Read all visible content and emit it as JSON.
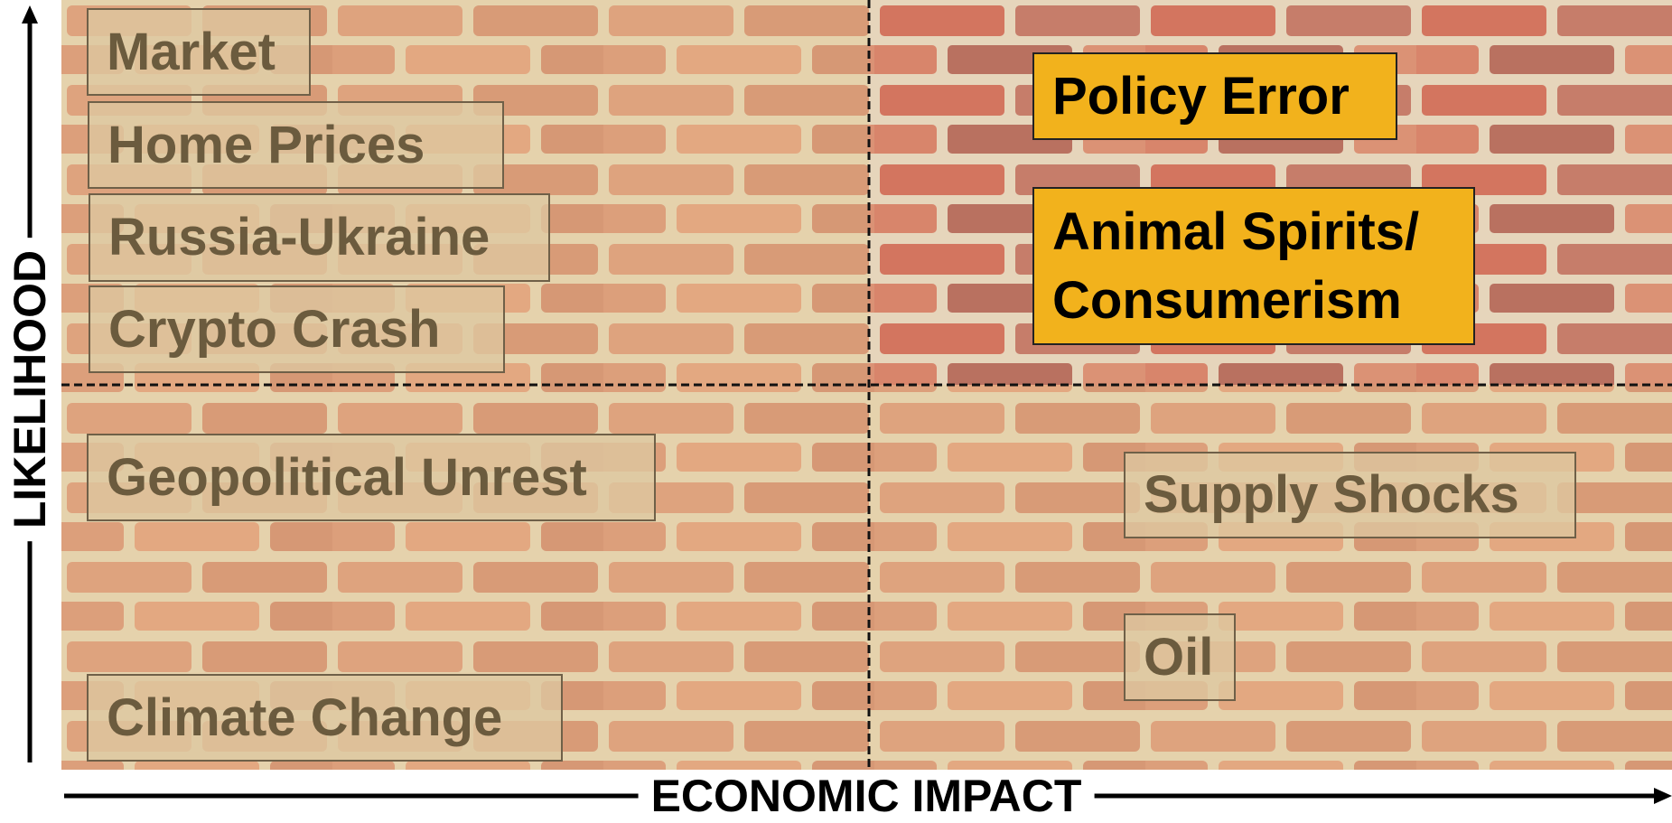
{
  "axes": {
    "x_label": "ECONOMIC IMPACT",
    "y_label": "LIKELIHOOD"
  },
  "risks": [
    {
      "lines": [
        "Market"
      ],
      "highlighted": false
    },
    {
      "lines": [
        "Home Prices"
      ],
      "highlighted": false
    },
    {
      "lines": [
        "Russia-Ukraine"
      ],
      "highlighted": false
    },
    {
      "lines": [
        "Crypto Crash"
      ],
      "highlighted": false
    },
    {
      "lines": [
        "Geopolitical Unrest"
      ],
      "highlighted": false
    },
    {
      "lines": [
        "Climate Change"
      ],
      "highlighted": false
    },
    {
      "lines": [
        "Policy Error"
      ],
      "highlighted": true
    },
    {
      "lines": [
        "Animal Spirits/",
        "Consumerism"
      ],
      "highlighted": true
    },
    {
      "lines": [
        "Supply Shocks"
      ],
      "highlighted": false
    },
    {
      "lines": [
        "Oil"
      ],
      "highlighted": false
    }
  ]
}
